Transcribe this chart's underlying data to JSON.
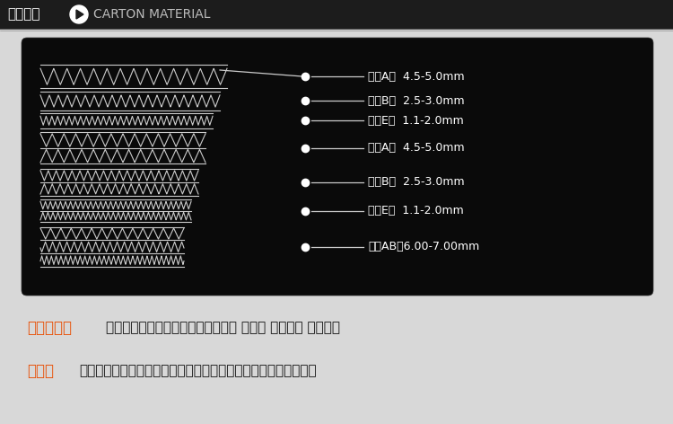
{
  "bg_color": "#d8d8d8",
  "header_bg": "#1a1a1a",
  "header_text_cn": "纸箱材质",
  "header_play_color": "#ffffff",
  "header_text_en": "CARTON MATERIAL",
  "header_text_en_color": "#cccccc",
  "card_bg": "#0a0a0a",
  "wave_color": "#cccccc",
  "dot_color": "#ffffff",
  "label_color": "#ffffff",
  "layers": [
    "三层A瓦  4.5-5.0mm",
    "三层B瓦  2.5-3.0mm",
    "三层E瓦  1.1-2.0mm",
    "五层A瓦  4.5-5.0mm",
    "五层B瓦  2.5-3.0mm",
    "五层E瓦  1.1-2.0mm",
    "七层AB瓦6.00-7.00mm"
  ],
  "orange_color": "#e8520a",
  "line1_label": "三层五层：",
  "line1_text": "硬度好，缓冲性好，常用于淘宝纸箱 飞机盒 邮政纸箱 搬家纸箱",
  "line2_label": "七层：",
  "line2_text": "硬度强，承重高，缓冲好，常用于精品纸箱，易碎物品，大型产品"
}
